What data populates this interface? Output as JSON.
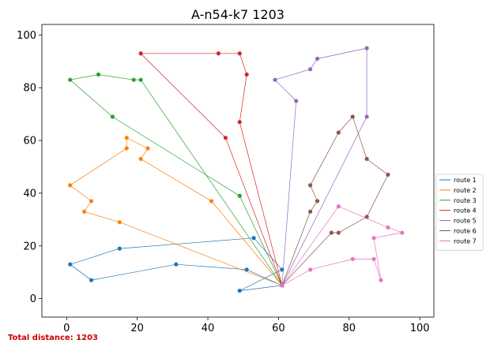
{
  "chart_data": {
    "type": "line",
    "title": "A-n54-k7 1203",
    "xlabel": "",
    "ylabel": "",
    "xlim": [
      -7,
      104
    ],
    "ylim": [
      -7,
      104
    ],
    "xticks": [
      0,
      20,
      40,
      60,
      80,
      100
    ],
    "yticks": [
      0,
      20,
      40,
      60,
      80,
      100
    ],
    "grid": false,
    "legend_position": "right",
    "depot": [
      61,
      5
    ],
    "series": [
      {
        "name": "route 1",
        "color": "#1f77b4",
        "points": [
          [
            61,
            5
          ],
          [
            49,
            3
          ],
          [
            61,
            11
          ],
          [
            53,
            23
          ],
          [
            15,
            19
          ],
          [
            1,
            13
          ],
          [
            7,
            7
          ],
          [
            31,
            13
          ],
          [
            51,
            11
          ],
          [
            61,
            5
          ]
        ]
      },
      {
        "name": "route 2",
        "color": "#ff7f0e",
        "points": [
          [
            61,
            5
          ],
          [
            15,
            29
          ],
          [
            5,
            33
          ],
          [
            7,
            37
          ],
          [
            1,
            43
          ],
          [
            17,
            57
          ],
          [
            17,
            61
          ],
          [
            23,
            57
          ],
          [
            21,
            53
          ],
          [
            41,
            37
          ],
          [
            61,
            5
          ]
        ]
      },
      {
        "name": "route 3",
        "color": "#2ca02c",
        "points": [
          [
            61,
            5
          ],
          [
            21,
            83
          ],
          [
            19,
            83
          ],
          [
            9,
            85
          ],
          [
            1,
            83
          ],
          [
            13,
            69
          ],
          [
            49,
            39
          ],
          [
            61,
            5
          ]
        ]
      },
      {
        "name": "route 4",
        "color": "#d62728",
        "points": [
          [
            61,
            5
          ],
          [
            45,
            61
          ],
          [
            21,
            93
          ],
          [
            43,
            93
          ],
          [
            49,
            93
          ],
          [
            51,
            85
          ],
          [
            49,
            67
          ],
          [
            61,
            5
          ]
        ]
      },
      {
        "name": "route 5",
        "color": "#9467bd",
        "points": [
          [
            61,
            5
          ],
          [
            65,
            75
          ],
          [
            59,
            83
          ],
          [
            69,
            87
          ],
          [
            71,
            91
          ],
          [
            85,
            95
          ],
          [
            85,
            69
          ],
          [
            61,
            5
          ]
        ]
      },
      {
        "name": "route 6",
        "color": "#8c564b",
        "points": [
          [
            61,
            5
          ],
          [
            69,
            33
          ],
          [
            71,
            37
          ],
          [
            69,
            43
          ],
          [
            77,
            63
          ],
          [
            81,
            69
          ],
          [
            85,
            53
          ],
          [
            91,
            47
          ],
          [
            85,
            31
          ],
          [
            77,
            25
          ],
          [
            75,
            25
          ],
          [
            61,
            5
          ]
        ]
      },
      {
        "name": "route 7",
        "color": "#e377c2",
        "points": [
          [
            61,
            5
          ],
          [
            69,
            11
          ],
          [
            81,
            15
          ],
          [
            87,
            15
          ],
          [
            89,
            7
          ],
          [
            87,
            23
          ],
          [
            95,
            25
          ],
          [
            91,
            27
          ],
          [
            77,
            35
          ],
          [
            61,
            5
          ]
        ]
      }
    ]
  },
  "footer": {
    "total_distance": "Total distance: 1203"
  }
}
